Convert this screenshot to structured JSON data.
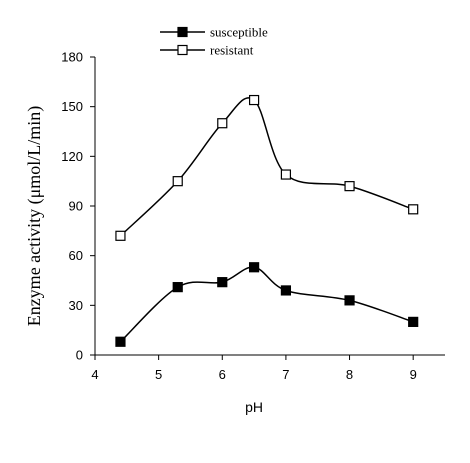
{
  "chart_data": {
    "type": "line",
    "title": "",
    "xlabel": "pH",
    "ylabel": "Enzyme activity (μmol/L/min)",
    "xlim": [
      4,
      9.5
    ],
    "ylim": [
      0,
      180
    ],
    "x_ticks": [
      4,
      5,
      6,
      7,
      8,
      9
    ],
    "y_ticks": [
      0,
      30,
      60,
      90,
      120,
      150,
      180
    ],
    "x_tick_labels": [
      "4",
      "5",
      "6",
      "7",
      "8",
      "9"
    ],
    "y_tick_labels": [
      "0",
      "30",
      "60",
      "90",
      "120",
      "150",
      "180"
    ],
    "grid": false,
    "legend_position": "top-center",
    "series": [
      {
        "name": "susceptible",
        "marker": "filled-square",
        "color": "#000000",
        "x": [
          4.4,
          5.3,
          6.0,
          6.5,
          7.0,
          8.0,
          9.0
        ],
        "y": [
          8,
          41,
          44,
          53,
          39,
          33,
          20
        ]
      },
      {
        "name": "resistant",
        "marker": "open-square",
        "color": "#000000",
        "x": [
          4.4,
          5.3,
          6.0,
          6.5,
          7.0,
          8.0,
          9.0
        ],
        "y": [
          72,
          105,
          140,
          154,
          109,
          102,
          88
        ]
      }
    ]
  }
}
